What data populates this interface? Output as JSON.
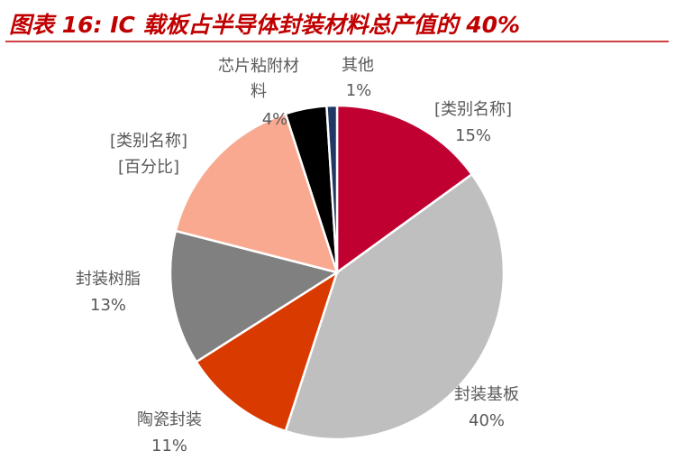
{
  "chart_data": {
    "type": "pie",
    "title": "图表 16:    IC 载板占半导体封装材料总产值的 40%",
    "categories": [
      "[类别名称]",
      "封装基板",
      "陶瓷封装",
      "封装树脂",
      "[类别名称]",
      "芯片粘附材料",
      "其他"
    ],
    "values": [
      15,
      40,
      11,
      13,
      16,
      4,
      1
    ],
    "value_labels": [
      "15%",
      "40%",
      "11%",
      "13%",
      "[百分比]",
      "4%",
      "1%"
    ],
    "colors": [
      "#C00030",
      "#BFBFBF",
      "#D93A00",
      "#808080",
      "#F9A98F",
      "#000000",
      "#1F3864"
    ]
  }
}
